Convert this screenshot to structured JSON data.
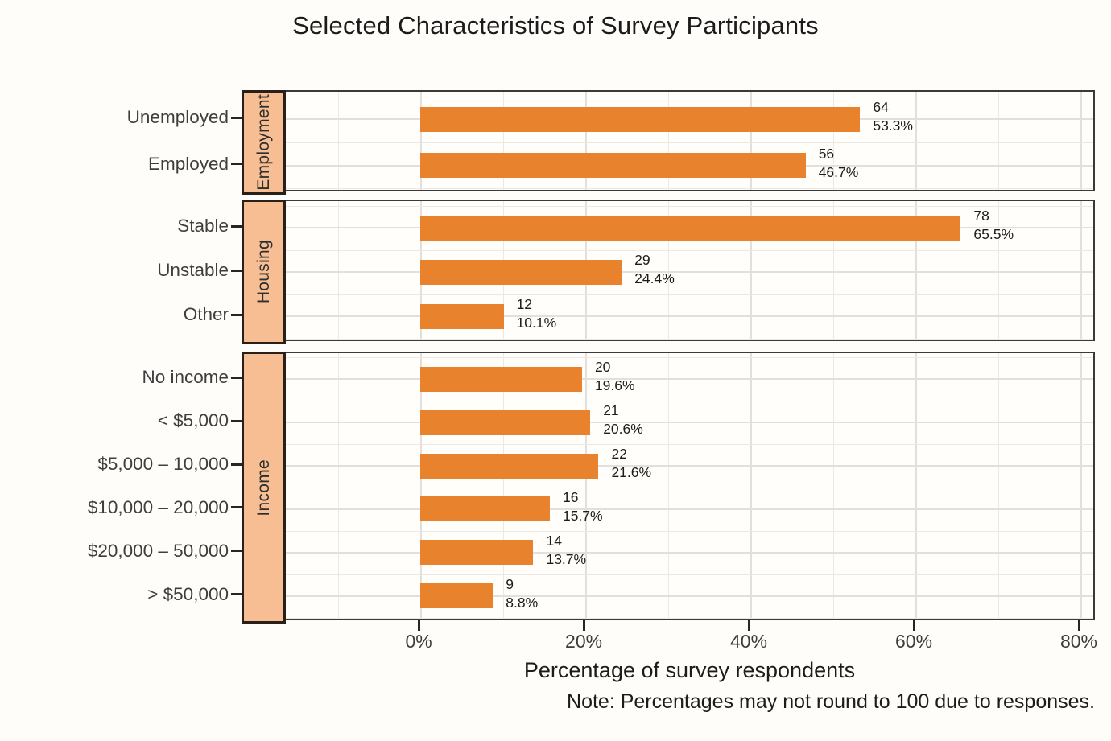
{
  "colors": {
    "background": "#FFFDF9",
    "panel_bg": "#FFFEFB",
    "panel_border": "#3A3A3A",
    "bar": "#E8822C",
    "strip_fill": "#F6BE92",
    "strip_border": "#2A201A",
    "grid_major": "#E4DFDB",
    "grid_minor": "#ECE8E4",
    "tick_mark": "#262626",
    "axis_text": "#3D3D3D",
    "category_text": "#3E3E3E",
    "strip_text": "#2E2E2E",
    "annotation_text": "#1C1C1C",
    "title_text": "#1B1B1B"
  },
  "chart_data": {
    "type": "bar",
    "orientation": "horizontal",
    "title": "Selected Characteristics of Survey Participants",
    "xlabel": "Percentage of survey respondents",
    "note": "Note: Percentages may not round to 100 due to responses.",
    "x_axis": {
      "tick_labels": [
        "0%",
        "20%",
        "40%",
        "60%",
        "80%"
      ],
      "tick_values": [
        0,
        20,
        40,
        60,
        80
      ],
      "range": [
        -16.3,
        81.95
      ],
      "minor_step": 10,
      "grid": true
    },
    "legend": "none",
    "panels": [
      {
        "strip": "Employment",
        "rows": [
          {
            "category": "Unemployed",
            "count": 64,
            "pct": 53.3,
            "count_label": "64",
            "pct_label": "53.3%"
          },
          {
            "category": "Employed",
            "count": 56,
            "pct": 46.7,
            "count_label": "56",
            "pct_label": "46.7%"
          }
        ]
      },
      {
        "strip": "Housing",
        "rows": [
          {
            "category": "Stable",
            "count": 78,
            "pct": 65.5,
            "count_label": "78",
            "pct_label": "65.5%"
          },
          {
            "category": "Unstable",
            "count": 29,
            "pct": 24.4,
            "count_label": "29",
            "pct_label": "24.4%"
          },
          {
            "category": "Other",
            "count": 12,
            "pct": 10.1,
            "count_label": "12",
            "pct_label": "10.1%"
          }
        ]
      },
      {
        "strip": "Income",
        "rows": [
          {
            "category": "No income",
            "count": 20,
            "pct": 19.6,
            "count_label": "20",
            "pct_label": "19.6%"
          },
          {
            "category": "< $5,000",
            "count": 21,
            "pct": 20.6,
            "count_label": "21",
            "pct_label": "20.6%"
          },
          {
            "category": "$5,000 – 10,000",
            "count": 22,
            "pct": 21.6,
            "count_label": "22",
            "pct_label": "21.6%"
          },
          {
            "category": "$10,000 – 20,000",
            "count": 16,
            "pct": 15.7,
            "count_label": "16",
            "pct_label": "15.7%"
          },
          {
            "category": "$20,000 – 50,000",
            "count": 14,
            "pct": 13.7,
            "count_label": "14",
            "pct_label": "13.7%"
          },
          {
            "category": "> $50,000",
            "count": 9,
            "pct": 8.8,
            "count_label": "9",
            "pct_label": "8.8%"
          }
        ]
      }
    ]
  }
}
